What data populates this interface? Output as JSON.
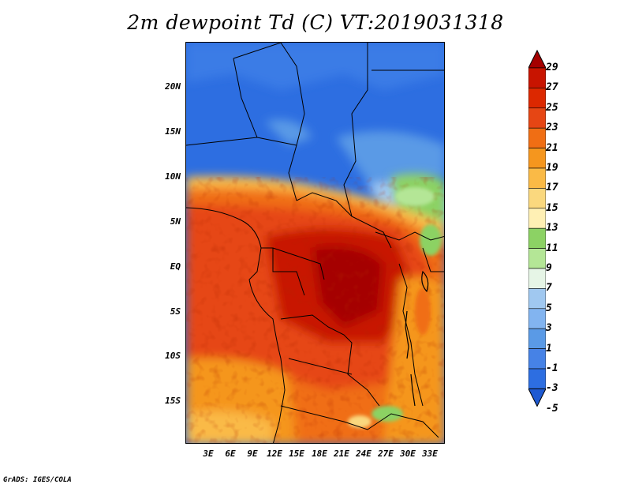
{
  "title": "2m dewpoint Td (C) VT:2019031318",
  "credit": "GrADS: IGES/COLA",
  "lat_labels": [
    "20N",
    "15N",
    "10N",
    "5N",
    "EQ",
    "5S",
    "10S",
    "15S"
  ],
  "lon_labels": [
    "3E",
    "6E",
    "9E",
    "12E",
    "15E",
    "18E",
    "21E",
    "24E",
    "27E",
    "30E",
    "33E"
  ],
  "colorbar": {
    "labels": [
      "29",
      "27",
      "25",
      "23",
      "21",
      "19",
      "17",
      "15",
      "13",
      "11",
      "9",
      "7",
      "5",
      "3",
      "1",
      "-1",
      "-3",
      "-5"
    ],
    "colors": [
      "#a50000",
      "#c81400",
      "#dc2800",
      "#e64614",
      "#f06e14",
      "#f5961e",
      "#faba46",
      "#fad87e",
      "#fff0b4",
      "#8cd264",
      "#b4e696",
      "#e6f5e6",
      "#a0c8f0",
      "#82b4f0",
      "#5a9ae6",
      "#4682e6",
      "#2d6ee1",
      "#1e5ad2"
    ]
  },
  "map": {
    "variable": "2m dewpoint",
    "units": "C",
    "valid_time": "2019031318",
    "lon_range": [
      0,
      35
    ],
    "lat_range": [
      -20,
      25
    ]
  }
}
